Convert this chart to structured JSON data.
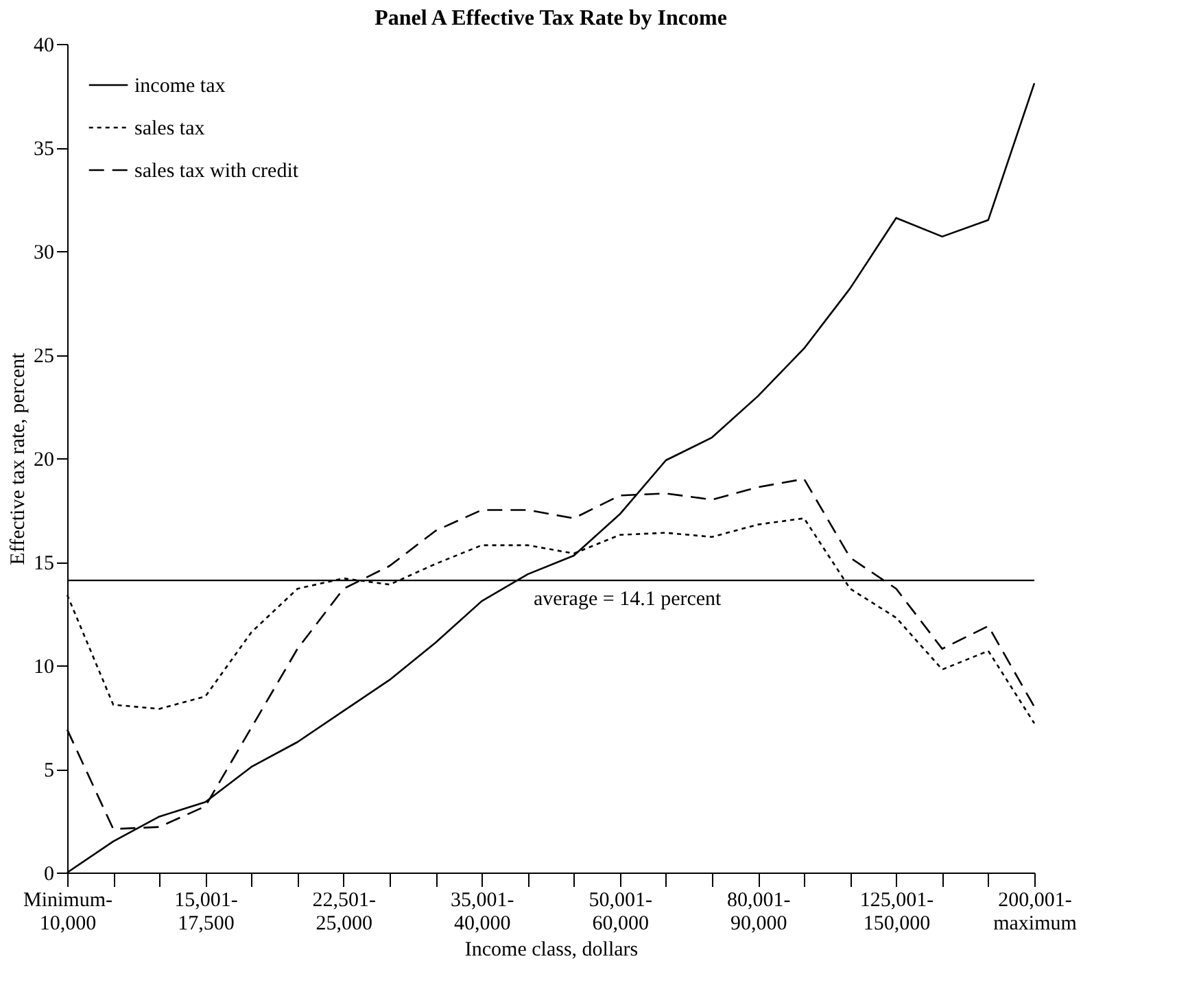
{
  "chart_data": {
    "type": "line",
    "title": "Panel A     Effective Tax Rate by Income",
    "xlabel": "Income class, dollars",
    "ylabel": "Effective tax rate, percent",
    "categories": [
      "Minimum-\n10,000",
      null,
      null,
      "15,001-\n17,500",
      null,
      null,
      "22,501-\n25,000",
      null,
      null,
      "35,001-\n40,000",
      null,
      null,
      "50,001-\n60,000",
      null,
      null,
      "80,001-\n90,000",
      null,
      null,
      "125,001-\n150,000",
      null,
      null,
      "200,001-\nmaximum"
    ],
    "series": [
      {
        "name": "income tax",
        "color": "#000000",
        "line_style": "solid",
        "values": [
          0,
          1.5,
          2.7,
          3.4,
          5.1,
          6.3,
          7.8,
          9.3,
          11.1,
          13.1,
          14.4,
          15.3,
          17.3,
          19.9,
          21.0,
          23.0,
          25.3,
          28.2,
          31.6,
          30.7,
          31.5,
          38.1
        ]
      },
      {
        "name": "sales tax",
        "color": "#000000",
        "line_style": "dotted",
        "values": [
          13.4,
          8.1,
          7.9,
          8.5,
          11.6,
          13.7,
          14.2,
          13.9,
          14.9,
          15.8,
          15.8,
          15.4,
          16.3,
          16.4,
          16.2,
          16.8,
          17.1,
          13.7,
          12.3,
          9.8,
          10.7,
          7.2
        ]
      },
      {
        "name": "sales tax with credit",
        "color": "#000000",
        "line_style": "dashed",
        "values": [
          6.9,
          2.1,
          2.2,
          3.2,
          7.0,
          10.8,
          13.7,
          14.8,
          16.5,
          17.5,
          17.5,
          17.1,
          18.2,
          18.3,
          18.0,
          18.6,
          19.0,
          15.2,
          13.7,
          10.8,
          11.9,
          8.0
        ]
      }
    ],
    "ylim": [
      0,
      40
    ],
    "yticks": [
      0,
      5,
      10,
      15,
      20,
      25,
      30,
      35,
      40
    ],
    "ref_lines": [
      {
        "axis": "y",
        "value": 14.1,
        "label": "average = 14.1 percent",
        "color": "#000000"
      }
    ],
    "grid": false,
    "legend": "top left",
    "marker": "none"
  }
}
